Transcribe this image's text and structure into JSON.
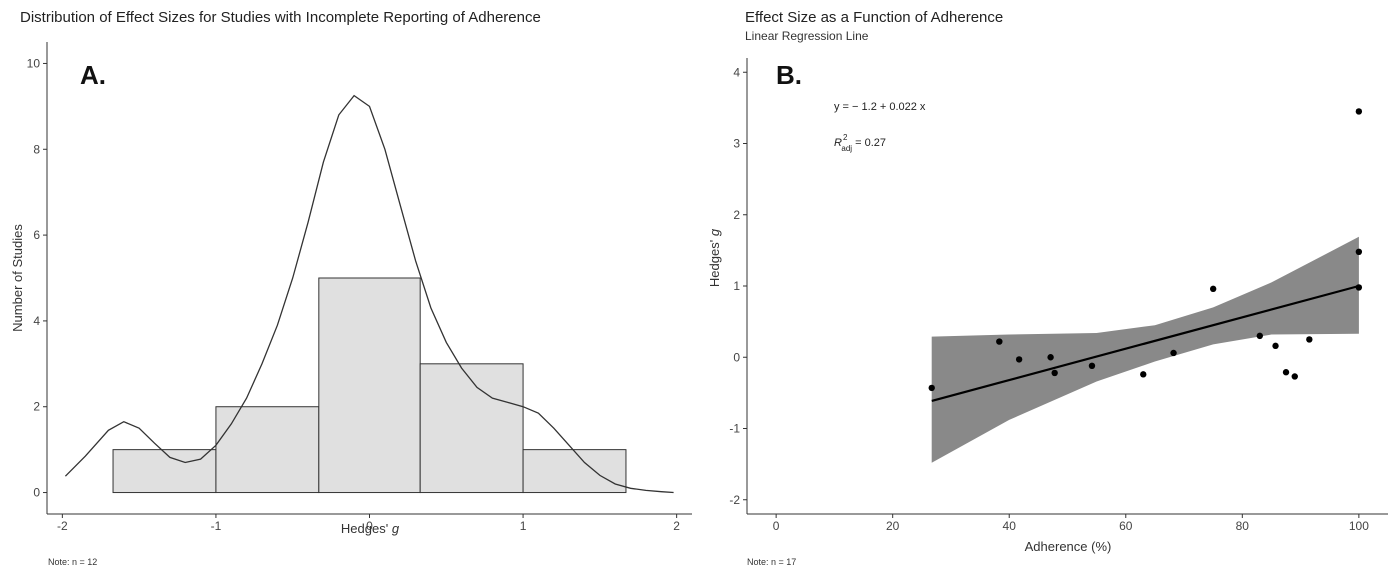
{
  "chart_data": [
    {
      "type": "bar",
      "panel_label": "A.",
      "title": "Distribution of Effect Sizes for Studies with Incomplete Reporting of Adherence",
      "xlabel": "Hedges'",
      "xlabel_italic": "g",
      "ylabel": "Number of Studies",
      "note": "Note: n = 12",
      "xlim": [
        -2.1,
        2.1
      ],
      "ylim": [
        -0.5,
        10.5
      ],
      "x_ticks": [
        -2,
        -1,
        0,
        1,
        2
      ],
      "y_ticks": [
        0,
        2,
        4,
        6,
        8,
        10
      ],
      "bins": [
        {
          "x0": -1.67,
          "x1": -1.0,
          "count": 1
        },
        {
          "x0": -1.0,
          "x1": -0.33,
          "count": 2
        },
        {
          "x0": -0.33,
          "x1": 0.33,
          "count": 5
        },
        {
          "x0": 0.33,
          "x1": 1.0,
          "count": 3
        },
        {
          "x0": 1.0,
          "x1": 1.67,
          "count": 1
        }
      ],
      "density_curve": {
        "x": [
          -1.98,
          -1.85,
          -1.7,
          -1.6,
          -1.5,
          -1.4,
          -1.3,
          -1.2,
          -1.1,
          -1.0,
          -0.9,
          -0.8,
          -0.7,
          -0.6,
          -0.5,
          -0.4,
          -0.3,
          -0.2,
          -0.1,
          0.0,
          0.1,
          0.2,
          0.3,
          0.4,
          0.5,
          0.6,
          0.7,
          0.8,
          0.9,
          1.0,
          1.1,
          1.2,
          1.3,
          1.4,
          1.5,
          1.6,
          1.7,
          1.8,
          1.9,
          1.98
        ],
        "y": [
          0.38,
          0.85,
          1.45,
          1.65,
          1.5,
          1.15,
          0.82,
          0.7,
          0.78,
          1.1,
          1.6,
          2.2,
          3.0,
          3.9,
          5.0,
          6.3,
          7.7,
          8.8,
          9.25,
          9.0,
          8.0,
          6.7,
          5.4,
          4.3,
          3.5,
          2.9,
          2.45,
          2.2,
          2.1,
          2.0,
          1.85,
          1.5,
          1.1,
          0.7,
          0.4,
          0.2,
          0.1,
          0.05,
          0.02,
          0.0
        ]
      }
    },
    {
      "type": "scatter",
      "panel_label": "B.",
      "title": "Effect Size as a Function of Adherence",
      "subtitle": "Linear Regression Line",
      "xlabel": "Adherence (%)",
      "ylabel": "Hedges'",
      "ylabel_italic": "g",
      "note": "Note: n = 17",
      "equation": "y = − 1.2 + 0.022 x",
      "r2_prefix": "R",
      "r2_sup": "2",
      "r2_sub": "adj",
      "r2_value": "= 0.27",
      "xlim": [
        -5,
        105
      ],
      "ylim": [
        -2.2,
        4.2
      ],
      "x_ticks": [
        0,
        20,
        40,
        60,
        80,
        100
      ],
      "y_ticks": [
        -2,
        -1,
        0,
        1,
        2,
        3,
        4
      ],
      "points": [
        {
          "x": 26.7,
          "y": -0.43
        },
        {
          "x": 38.3,
          "y": 0.22
        },
        {
          "x": 41.7,
          "y": -0.03
        },
        {
          "x": 47.1,
          "y": 0.0
        },
        {
          "x": 47.8,
          "y": -0.22
        },
        {
          "x": 54.2,
          "y": -0.12
        },
        {
          "x": 63.0,
          "y": -0.24
        },
        {
          "x": 68.2,
          "y": 0.06
        },
        {
          "x": 75.0,
          "y": 0.96
        },
        {
          "x": 83.0,
          "y": 0.3
        },
        {
          "x": 85.7,
          "y": 0.16
        },
        {
          "x": 87.5,
          "y": -0.21
        },
        {
          "x": 89.0,
          "y": -0.27
        },
        {
          "x": 91.5,
          "y": 0.25
        },
        {
          "x": 100.0,
          "y": 3.45
        },
        {
          "x": 100.0,
          "y": 1.48
        },
        {
          "x": 100.0,
          "y": 0.98
        }
      ],
      "regression": {
        "intercept": -1.2,
        "slope": 0.022,
        "x_range": [
          26.7,
          100
        ]
      },
      "confidence_band": {
        "x": [
          26.7,
          40,
          55,
          65,
          75,
          85,
          100
        ],
        "lower": [
          -1.48,
          -0.88,
          -0.34,
          -0.06,
          0.18,
          0.32,
          0.33
        ],
        "upper": [
          0.29,
          0.32,
          0.34,
          0.45,
          0.7,
          1.05,
          1.69
        ]
      },
      "band_color": "#898989",
      "line_color": "#000000",
      "point_color": "#000000"
    }
  ]
}
